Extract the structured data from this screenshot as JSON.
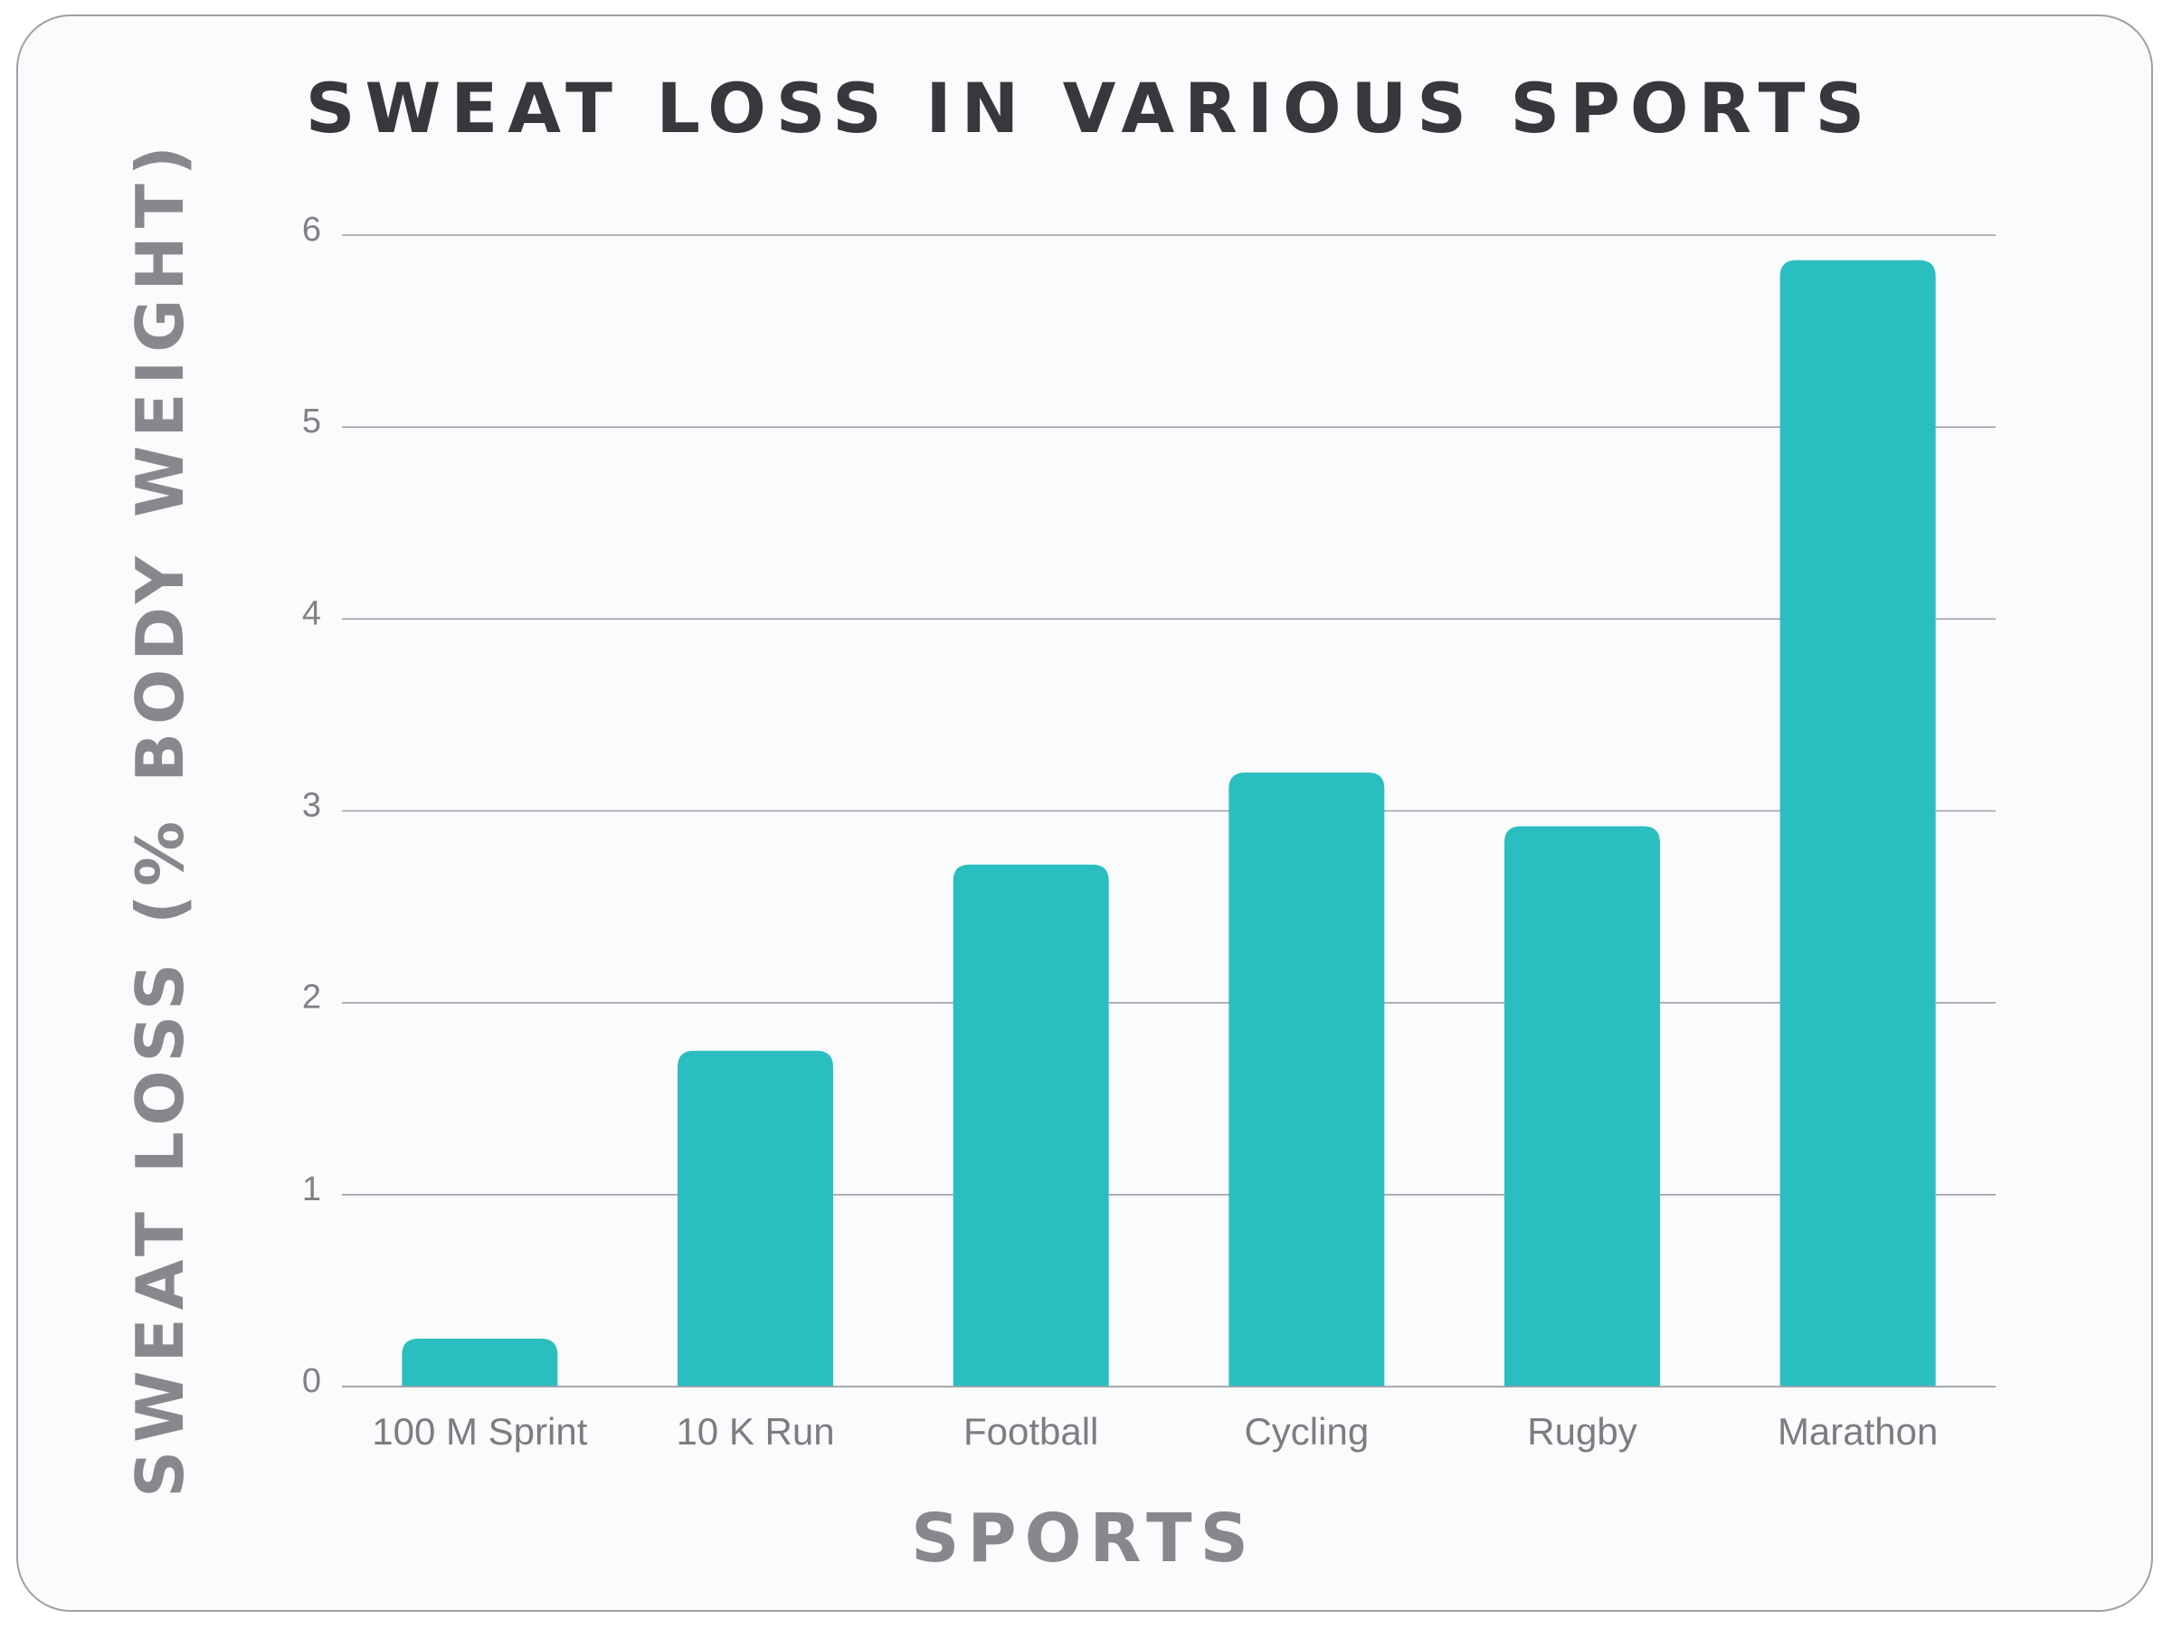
{
  "chart_data": {
    "type": "bar",
    "title": "SWEAT LOSS IN VARIOUS SPORTS",
    "xlabel": "SPORTS",
    "ylabel": "SWEAT LOSS (% BODY WEIGHT)",
    "categories": [
      "100 M Sprint",
      "10 K Run",
      "Football",
      "Cycling",
      "Rugby",
      "Marathon"
    ],
    "values": [
      0.25,
      1.75,
      2.72,
      3.2,
      2.92,
      5.87
    ],
    "ylim": [
      0,
      6
    ],
    "yticks": [
      0,
      1,
      2,
      3,
      4,
      5,
      6
    ],
    "grid": true,
    "bar_color": "#2bbec1"
  }
}
